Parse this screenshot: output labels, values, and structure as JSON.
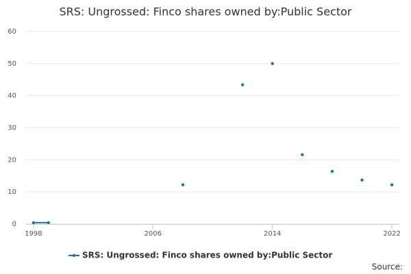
{
  "chart_data": {
    "type": "line",
    "title": "SRS: Ungrossed: Finco shares owned by:Public Sector",
    "x": [
      1998,
      1999,
      2000,
      2001,
      2002,
      2003,
      2004,
      2005,
      2006,
      2007,
      2008,
      2009,
      2010,
      2011,
      2012,
      2013,
      2014,
      2015,
      2016,
      2017,
      2018,
      2019,
      2020,
      2021,
      2022
    ],
    "series": [
      {
        "name": "SRS: Ungrossed: Finco shares owned by:Public Sector",
        "color": "#1a73b5",
        "values": [
          0.4,
          0.4,
          null,
          null,
          null,
          null,
          null,
          null,
          null,
          null,
          12.2,
          null,
          null,
          null,
          43.4,
          null,
          50,
          null,
          21.6,
          null,
          16.4,
          null,
          13.7,
          null,
          12.2
        ]
      }
    ],
    "xlim": [
      1997.5,
      2022.5
    ],
    "xticks": [
      1998,
      2006,
      2014,
      2022
    ],
    "ylim": [
      0,
      60
    ],
    "yticks": [
      0,
      10,
      20,
      30,
      40,
      50,
      60
    ],
    "grid": true,
    "legend": "bottom",
    "source": "Source:"
  }
}
